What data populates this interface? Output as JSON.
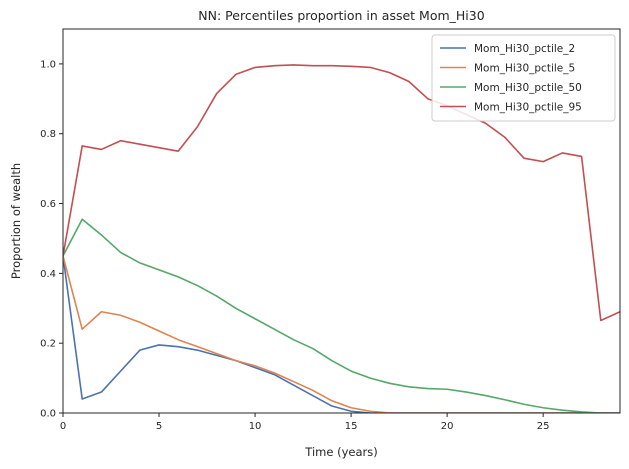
{
  "chart_data": {
    "type": "line",
    "title": "NN: Percentiles proportion in asset Mom_Hi30",
    "xlabel": "Time (years)",
    "ylabel": "Proportion of wealth",
    "xlim": [
      0,
      29
    ],
    "ylim": [
      0,
      1.1
    ],
    "xticks": [
      0,
      5,
      10,
      15,
      20,
      25
    ],
    "yticks": [
      0.0,
      0.2,
      0.4,
      0.6,
      0.8,
      1.0
    ],
    "xtick_labels": [
      "0",
      "5",
      "10",
      "15",
      "20",
      "25"
    ],
    "ytick_labels": [
      "0.0",
      "0.2",
      "0.4",
      "0.6",
      "0.8",
      "1.0"
    ],
    "grid": false,
    "legend_position": "top-right",
    "x": [
      0,
      1,
      2,
      3,
      4,
      5,
      6,
      7,
      8,
      9,
      10,
      11,
      12,
      13,
      14,
      15,
      16,
      17,
      18,
      19,
      20,
      21,
      22,
      23,
      24,
      25,
      26,
      27,
      28,
      29
    ],
    "series": [
      {
        "name": "Mom_Hi30_pctile_2",
        "color": "#4c72b0",
        "values": [
          0.45,
          0.04,
          0.06,
          0.12,
          0.18,
          0.195,
          0.19,
          0.18,
          0.165,
          0.15,
          0.13,
          0.11,
          0.08,
          0.05,
          0.02,
          0.005,
          0,
          0,
          0,
          0,
          0,
          0,
          0,
          0,
          0,
          0,
          0,
          0,
          0,
          0
        ]
      },
      {
        "name": "Mom_Hi30_pctile_5",
        "color": "#dd8452",
        "values": [
          0.45,
          0.24,
          0.29,
          0.28,
          0.26,
          0.235,
          0.21,
          0.19,
          0.17,
          0.15,
          0.135,
          0.115,
          0.09,
          0.065,
          0.035,
          0.015,
          0.005,
          0,
          0,
          0,
          0,
          0,
          0,
          0,
          0,
          0,
          0,
          0,
          0,
          0
        ]
      },
      {
        "name": "Mom_Hi30_pctile_50",
        "color": "#55a868",
        "values": [
          0.45,
          0.555,
          0.51,
          0.46,
          0.43,
          0.41,
          0.39,
          0.365,
          0.335,
          0.3,
          0.27,
          0.24,
          0.21,
          0.185,
          0.15,
          0.12,
          0.1,
          0.085,
          0.075,
          0.07,
          0.068,
          0.06,
          0.05,
          0.038,
          0.025,
          0.015,
          0.008,
          0.003,
          0,
          0
        ]
      },
      {
        "name": "Mom_Hi30_pctile_95",
        "color": "#c44e52",
        "values": [
          0.45,
          0.765,
          0.755,
          0.78,
          0.77,
          0.76,
          0.75,
          0.82,
          0.915,
          0.97,
          0.99,
          0.995,
          0.997,
          0.995,
          0.995,
          0.993,
          0.99,
          0.975,
          0.95,
          0.9,
          0.88,
          0.855,
          0.83,
          0.79,
          0.73,
          0.72,
          0.745,
          0.735,
          0.265,
          0.29
        ]
      }
    ]
  }
}
